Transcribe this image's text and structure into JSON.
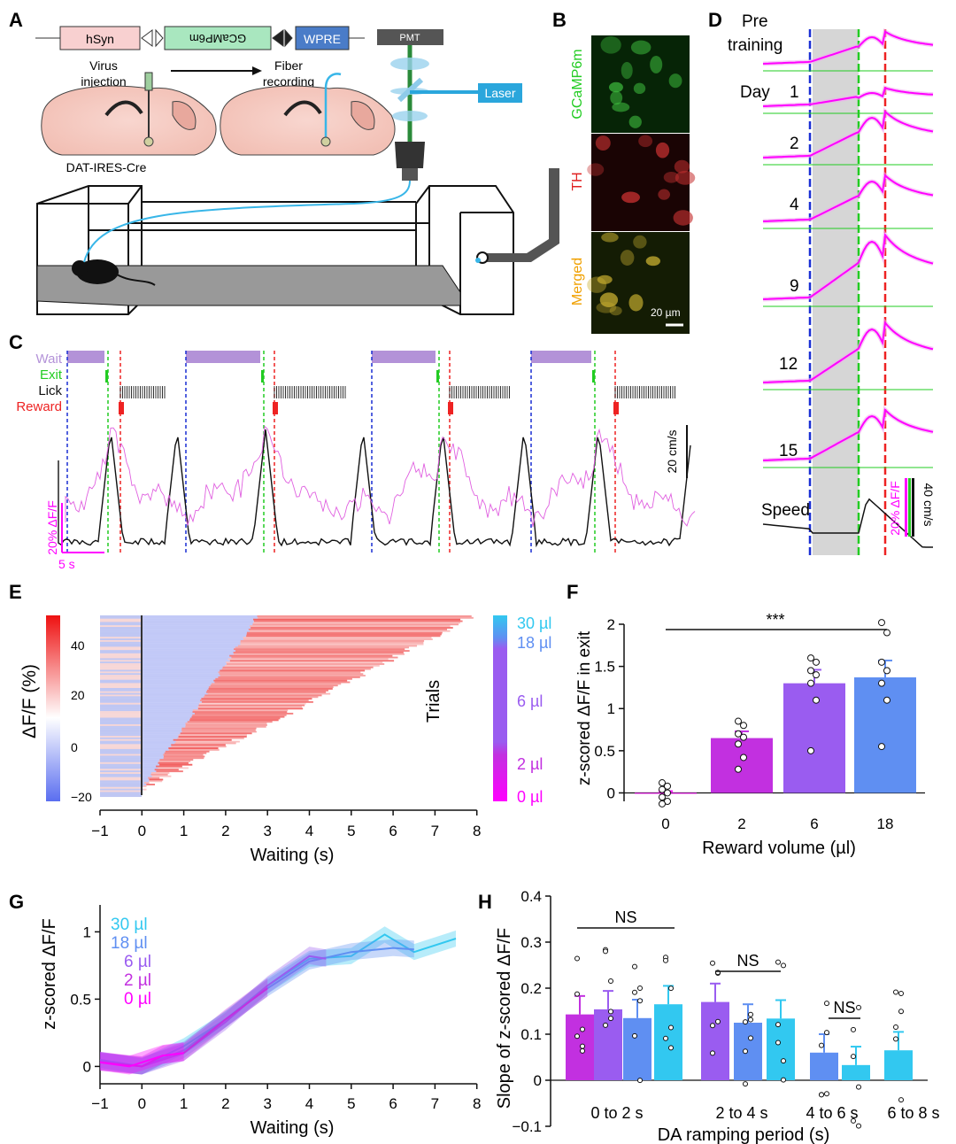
{
  "panels": {
    "A": {
      "letter": "A",
      "construct": [
        "hSyn",
        "GCaMP6m",
        "WPRE"
      ],
      "step1": [
        "Virus",
        "injection"
      ],
      "step2": [
        "Fiber",
        "recording"
      ],
      "mouse_line": "DAT-IRES-Cre",
      "pmt": "PMT",
      "laser": "Laser"
    },
    "B": {
      "letter": "B",
      "rows": [
        "GCaMP6m",
        "TH",
        "Merged"
      ],
      "scalebar": "20 µm"
    },
    "C": {
      "letter": "C",
      "events": [
        "Wait",
        "Exit",
        "Lick",
        "Reward"
      ],
      "speed_scale": "20 cm/s",
      "dff_scale": "20%  ΔF/F",
      "time_scale": "5 s"
    },
    "D": {
      "letter": "D",
      "rows": [
        "Pre",
        "training",
        "Day",
        "1",
        "2",
        "4",
        "9",
        "12",
        "15"
      ],
      "speed": "Speed",
      "dff_scale": "20% ΔF/F",
      "speed_scale": "40 cm/s"
    },
    "E": {
      "letter": "E",
      "colorbar_label": "ΔF/F  (%)",
      "colorbar_ticks": [
        "40",
        "20",
        "0",
        "−20"
      ],
      "trials": "Trials",
      "volumes": [
        "30 µl",
        "18 µl",
        "6 µl",
        "2 µl",
        "0 µl"
      ],
      "xticks": [
        "−1",
        "0",
        "1",
        "2",
        "3",
        "4",
        "5",
        "6",
        "7",
        "8"
      ],
      "xlabel": "Waiting (s)"
    },
    "F": {
      "letter": "F",
      "ylabel": "z-scored  ΔF/F in exit",
      "xlabel": "Reward volume (µl)",
      "sig": "***",
      "yticks": [
        "2",
        "1.5",
        "1",
        "0.5",
        "0"
      ]
    },
    "G": {
      "letter": "G",
      "ylabel": "z-scored ΔF/F",
      "xlabel": "Waiting (s)",
      "legend": [
        "30 µl",
        "18 µl",
        "6 µl",
        "2 µl",
        "0 µl"
      ],
      "yticks": [
        "1",
        "0.5",
        "0"
      ],
      "xticks": [
        "−1",
        "0",
        "1",
        "2",
        "3",
        "4",
        "5",
        "6",
        "7",
        "8"
      ]
    },
    "H": {
      "letter": "H",
      "ylabel": "Slope of z-scored  ΔF/F",
      "xlabel": "DA ramping period (s)",
      "yticks": [
        "0.4",
        "0.3",
        "0.2",
        "0.1",
        "0",
        "−0.1"
      ],
      "groups": [
        "0 to 2 s",
        "2 to 4 s",
        "4 to 6 s",
        "6 to 8 s"
      ],
      "ns": [
        "NS",
        "NS",
        "NS"
      ]
    }
  },
  "colors": {
    "v0": "#ff00ff",
    "v2": "#c230e0",
    "v6": "#9a5cf0",
    "v18": "#5f8ff2",
    "v30": "#32c8f0",
    "exit": "#22cc22",
    "wait": "#b392d8",
    "reward": "#ee2222",
    "enter": "#1a2fd4"
  },
  "chart_data": [
    {
      "panel": "F",
      "type": "bar",
      "categories": [
        "0",
        "2",
        "6",
        "18"
      ],
      "values": [
        -0.01,
        0.65,
        1.3,
        1.37
      ],
      "errors": [
        0.03,
        0.08,
        0.16,
        0.2
      ],
      "points": [
        [
          0.12,
          0.08,
          0.04,
          0.0,
          -0.05,
          -0.1,
          -0.13
        ],
        [
          0.85,
          0.8,
          0.7,
          0.66,
          0.58,
          0.42,
          0.28
        ],
        [
          1.6,
          1.55,
          1.45,
          1.4,
          1.3,
          1.1,
          0.5
        ],
        [
          2.02,
          1.9,
          1.55,
          1.45,
          1.3,
          1.1,
          0.55
        ]
      ],
      "ylim": [
        -0.1,
        2.1
      ],
      "xlabel": "Reward volume (µl)",
      "ylabel": "z-scored  ΔF/F in exit"
    },
    {
      "panel": "H",
      "type": "bar",
      "categories": [
        "0 to 2 s",
        "2 to 4 s",
        "4 to 6 s",
        "6 to 8 s"
      ],
      "series": [
        {
          "name": "2 µl",
          "values": [
            0.143,
            0.0,
            0.0,
            0.0
          ]
        },
        {
          "name": "6 µl",
          "values": [
            0.154,
            0.17,
            0.0,
            0.0
          ]
        },
        {
          "name": "18 µl",
          "values": [
            0.135,
            0.125,
            0.06,
            0.0
          ]
        },
        {
          "name": "30 µl",
          "values": [
            0.165,
            0.134,
            0.033,
            0.065
          ]
        }
      ],
      "ylim": [
        -0.1,
        0.4
      ],
      "xlabel": "DA ramping period (s)",
      "ylabel": "Slope of z-scored  ΔF/F"
    },
    {
      "panel": "G",
      "type": "line",
      "x_range": [
        -1,
        8
      ],
      "ylim": [
        0,
        1.2
      ],
      "series": [
        {
          "name": "30 µl",
          "x": [
            -1,
            0,
            1,
            2,
            3,
            4,
            5,
            5.8,
            6.5,
            7.5
          ],
          "y": [
            0.05,
            0.0,
            0.15,
            0.35,
            0.6,
            0.8,
            0.82,
            0.98,
            0.85,
            0.95
          ]
        },
        {
          "name": "18 µl",
          "x": [
            -1,
            0,
            1,
            2,
            3,
            4,
            5,
            6,
            6.5
          ],
          "y": [
            0.04,
            0.0,
            0.12,
            0.35,
            0.58,
            0.78,
            0.85,
            0.88,
            0.87
          ]
        },
        {
          "name": "6 µl",
          "x": [
            -1,
            0,
            1,
            2,
            3,
            4,
            4.4
          ],
          "y": [
            0.03,
            0.0,
            0.1,
            0.33,
            0.6,
            0.82,
            0.8
          ]
        },
        {
          "name": "2 µl",
          "x": [
            -1,
            0,
            0.5,
            1,
            2,
            3
          ],
          "y": [
            0.03,
            0.0,
            0.08,
            0.1,
            0.35,
            0.58
          ]
        },
        {
          "name": "0 µl",
          "x": [
            -1,
            -0.3,
            0,
            0.5,
            1
          ],
          "y": [
            0.03,
            0.0,
            0.03,
            0.08,
            0.1
          ]
        }
      ]
    }
  ]
}
